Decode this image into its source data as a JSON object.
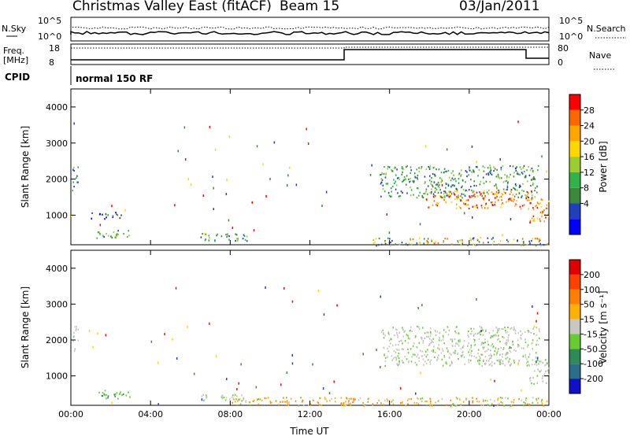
{
  "header": {
    "title": "Christmas Valley East (fitACF)",
    "beam": "Beam 15",
    "date": "03/Jan/2011"
  },
  "top_panels": {
    "nsky_label": "N.Sky",
    "nsearch_label": "N.Search",
    "nsky_ticks": [
      "10^5",
      "10^0"
    ],
    "nsearch_ticks": [
      "10^5",
      "10^0"
    ],
    "freq_label_line1": "Freq.",
    "freq_label_line2": "[MHz]",
    "freq_ticks": [
      "18",
      "8"
    ],
    "nave_label": "Nave",
    "nave_ticks": [
      "80",
      "0"
    ],
    "cpid_label": "CPID",
    "cpid_value": "normal 150 RF"
  },
  "colorbars": {
    "power": {
      "label": "Power [dB]",
      "ticks": [
        "28",
        "24",
        "20",
        "16",
        "12",
        "8",
        "4"
      ],
      "colors": [
        "#0000ff",
        "#1f3fbf",
        "#3b8a3b",
        "#2fb34a",
        "#9acd32",
        "#ffd700",
        "#ffa500",
        "#ff6600",
        "#ff0000"
      ]
    },
    "velocity": {
      "label": "Velocity [m s⁻¹]",
      "ticks": [
        "200",
        "100",
        "50",
        "15",
        "-15",
        "-50",
        "-100",
        "-200"
      ],
      "colors": [
        "#1010c8",
        "#2a6f8a",
        "#2e8b57",
        "#66cc33",
        "#c8c8c0",
        "#ffb000",
        "#ff8000",
        "#ff4000",
        "#e00000"
      ]
    }
  },
  "chart_data": [
    {
      "type": "heatmap",
      "name": "Power",
      "ylabel": "Slant Range [km]",
      "xlabel": "",
      "ylim": [
        180,
        4500
      ],
      "x_ticks": [
        "00:00",
        "04:00",
        "08:00",
        "12:00",
        "16:00",
        "20:00",
        "00:00"
      ],
      "y_ticks": [
        1000,
        2000,
        3000,
        4000
      ],
      "x_unit_range_hours": [
        0,
        24
      ],
      "blobs": [
        {
          "t0": 0.05,
          "t1": 0.35,
          "r0": 1700,
          "r1": 2400,
          "level": "mixed"
        },
        {
          "t0": 1.2,
          "t1": 3.0,
          "r0": 380,
          "r1": 620,
          "level": "green"
        },
        {
          "t0": 1.0,
          "t1": 2.6,
          "r0": 900,
          "r1": 1100,
          "level": "blue"
        },
        {
          "t0": 6.5,
          "t1": 9.0,
          "r0": 300,
          "r1": 520,
          "level": "green"
        },
        {
          "t0": 15.5,
          "t1": 23.5,
          "r0": 1500,
          "r1": 2400,
          "level": "green"
        },
        {
          "t0": 17.8,
          "t1": 23.2,
          "r0": 1200,
          "r1": 1700,
          "level": "red"
        },
        {
          "t0": 23.0,
          "t1": 24.0,
          "r0": 800,
          "r1": 1500,
          "level": "red"
        },
        {
          "t0": 15.0,
          "t1": 24.0,
          "r0": 180,
          "r1": 400,
          "level": "ground"
        }
      ]
    },
    {
      "type": "heatmap",
      "name": "Velocity",
      "ylabel": "Slant Range [km]",
      "xlabel": "Time UT",
      "ylim": [
        180,
        4500
      ],
      "x_ticks": [
        "00:00",
        "04:00",
        "08:00",
        "12:00",
        "16:00",
        "20:00",
        "00:00"
      ],
      "y_ticks": [
        1000,
        2000,
        3000,
        4000
      ],
      "x_unit_range_hours": [
        0,
        24
      ],
      "blobs": [
        {
          "t0": 0.05,
          "t1": 0.35,
          "r0": 1700,
          "r1": 2400,
          "level": "grey"
        },
        {
          "t0": 1.2,
          "t1": 3.0,
          "r0": 380,
          "r1": 620,
          "level": "lightgreen"
        },
        {
          "t0": 6.5,
          "t1": 9.0,
          "r0": 300,
          "r1": 520,
          "level": "grey"
        },
        {
          "t0": 15.5,
          "t1": 23.5,
          "r0": 1300,
          "r1": 2400,
          "level": "grey"
        },
        {
          "t0": 23.0,
          "t1": 24.0,
          "r0": 800,
          "r1": 1500,
          "level": "grey"
        },
        {
          "t0": 8.0,
          "t1": 24.0,
          "r0": 180,
          "r1": 420,
          "level": "orange"
        }
      ]
    }
  ]
}
